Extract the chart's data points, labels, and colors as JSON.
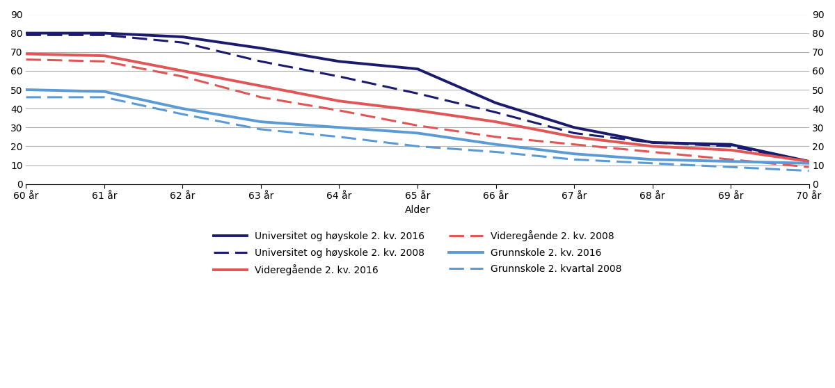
{
  "ages": [
    60,
    61,
    62,
    63,
    64,
    65,
    66,
    67,
    68,
    69,
    70
  ],
  "age_labels": [
    "60 år",
    "61 år",
    "62 år",
    "63 år",
    "64 år",
    "65 år",
    "66 år",
    "67 år",
    "68 år",
    "69 år",
    "70 år"
  ],
  "uni_2016": [
    80,
    80,
    78,
    72,
    65,
    61,
    43,
    30,
    22,
    21,
    12
  ],
  "uni_2008": [
    79,
    79,
    75,
    65,
    57,
    48,
    38,
    27,
    22,
    20,
    12
  ],
  "vgs_2016": [
    69,
    68,
    60,
    52,
    44,
    39,
    33,
    25,
    20,
    18,
    12
  ],
  "vgs_2008": [
    66,
    65,
    57,
    46,
    39,
    31,
    25,
    21,
    17,
    13,
    9
  ],
  "grunn_2016": [
    50,
    49,
    40,
    33,
    30,
    27,
    21,
    16,
    13,
    12,
    11
  ],
  "grunn_2008": [
    46,
    46,
    37,
    29,
    25,
    20,
    17,
    13,
    11,
    9,
    7
  ],
  "uni_color": "#1a1a6e",
  "vgs_color": "#e05555",
  "grunn_color": "#5b9bd5",
  "ylim": [
    0,
    90
  ],
  "yticks": [
    0,
    10,
    20,
    30,
    40,
    50,
    60,
    70,
    80,
    90
  ],
  "xlabel": "Alder",
  "legend_uni_2016": "Universitet og høyskole 2. kv. 2016",
  "legend_uni_2008": "Universitet og høyskole 2. kv. 2008",
  "legend_vgs_2016": "Videregående 2. kv. 2016",
  "legend_vgs_2008": "Videregående 2. kv. 2008",
  "legend_grunn_2016": "Grunnskole 2. kv. 2016",
  "legend_grunn_2008": "Grunnskole 2. kvartal 2008",
  "linewidth_solid": 2.8,
  "linewidth_dash": 2.2,
  "background_color": "#ffffff",
  "grid_color": "#b0b0b0"
}
